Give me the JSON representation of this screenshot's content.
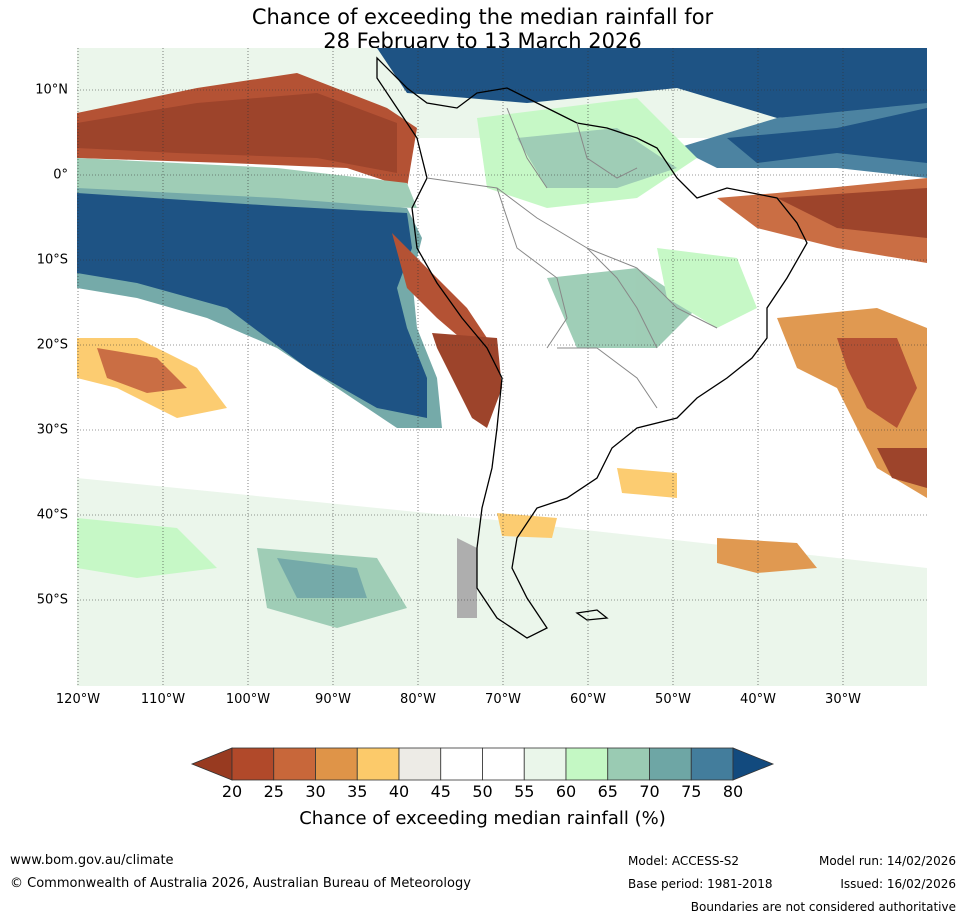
{
  "title_line1": "Chance of exceeding the median rainfall for",
  "title_line2": "28 February to 13 March 2026",
  "lat_labels": [
    "10°N",
    "0°",
    "10°S",
    "20°S",
    "30°S",
    "40°S",
    "50°S"
  ],
  "lon_labels": [
    "120°W",
    "110°W",
    "100°W",
    "90°W",
    "80°W",
    "70°W",
    "60°W",
    "50°W",
    "40°W",
    "30°W"
  ],
  "colorbar": {
    "ticks": [
      "20",
      "25",
      "30",
      "35",
      "40",
      "45",
      "50",
      "55",
      "60",
      "65",
      "70",
      "75",
      "80"
    ],
    "colors": [
      "#983a20",
      "#b1492a",
      "#c8673a",
      "#df9448",
      "#fcca6a",
      "#edebe6",
      "#ffffff",
      "#ffffff",
      "#eaf6ea",
      "#c4f8c4",
      "#9acbb3",
      "#6ea6a5",
      "#437d9c",
      "#124a7e"
    ],
    "label": "Chance of exceeding median rainfall (%)"
  },
  "footer": {
    "url": "www.bom.gov.au/climate",
    "copyright": "© Commonwealth of Australia 2026, Australian Bureau of Meteorology",
    "model": "Model: ACCESS-S2",
    "base_period": "Base period: 1981-2018",
    "model_run": "Model run: 14/02/2026",
    "issued": "Issued: 16/02/2026",
    "disclaimer": "Boundaries are not considered authoritative"
  }
}
